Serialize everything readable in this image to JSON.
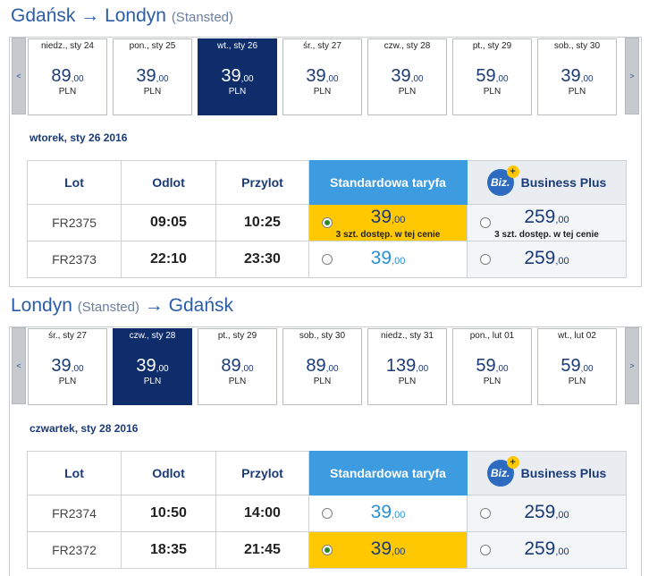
{
  "outbound": {
    "from": "Gdańsk",
    "to": "Londyn",
    "to_sub": "(Stansted)",
    "prev": "<",
    "next": ">",
    "days": [
      {
        "label": "niedz., sty 24",
        "price": "89",
        "cents": ",00",
        "currency": "PLN"
      },
      {
        "label": "pon., sty 25",
        "price": "39",
        "cents": ",00",
        "currency": "PLN"
      },
      {
        "label": "wt., sty 26",
        "price": "39",
        "cents": ",00",
        "currency": "PLN"
      },
      {
        "label": "śr., sty 27",
        "price": "39",
        "cents": ",00",
        "currency": "PLN"
      },
      {
        "label": "czw., sty 28",
        "price": "39",
        "cents": ",00",
        "currency": "PLN"
      },
      {
        "label": "pt., sty 29",
        "price": "59",
        "cents": ",00",
        "currency": "PLN"
      },
      {
        "label": "sob., sty 30",
        "price": "39",
        "cents": ",00",
        "currency": "PLN"
      }
    ],
    "date": "wtorek, sty 26 2016",
    "flights": [
      {
        "flight": "FR2375",
        "dep": "09:05",
        "arr": "10:25",
        "std_price": "39",
        "std_cents": ",00",
        "std_note": "3 szt. dostęp. w tej cenie",
        "biz_price": "259",
        "biz_cents": ",00",
        "biz_note": "3 szt. dostęp. w tej cenie"
      },
      {
        "flight": "FR2373",
        "dep": "22:10",
        "arr": "23:30",
        "std_price": "39",
        "std_cents": ",00",
        "biz_price": "259",
        "biz_cents": ",00"
      }
    ]
  },
  "inbound": {
    "from": "Londyn",
    "from_sub": "(Stansted)",
    "to": "Gdańsk",
    "prev": "<",
    "next": ">",
    "days": [
      {
        "label": "śr., sty 27",
        "price": "39",
        "cents": ",00",
        "currency": "PLN"
      },
      {
        "label": "czw., sty 28",
        "price": "39",
        "cents": ",00",
        "currency": "PLN"
      },
      {
        "label": "pt., sty 29",
        "price": "89",
        "cents": ",00",
        "currency": "PLN"
      },
      {
        "label": "sob., sty 30",
        "price": "89",
        "cents": ",00",
        "currency": "PLN"
      },
      {
        "label": "niedz., sty 31",
        "price": "139",
        "cents": ",00",
        "currency": "PLN"
      },
      {
        "label": "pon., lut 01",
        "price": "59",
        "cents": ",00",
        "currency": "PLN"
      },
      {
        "label": "wt., lut 02",
        "price": "59",
        "cents": ",00",
        "currency": "PLN"
      }
    ],
    "date": "czwartek, sty 28 2016",
    "flights": [
      {
        "flight": "FR2374",
        "dep": "10:50",
        "arr": "14:00",
        "std_price": "39",
        "std_cents": ",00",
        "biz_price": "259",
        "biz_cents": ",00"
      },
      {
        "flight": "FR2372",
        "dep": "18:35",
        "arr": "21:45",
        "std_price": "39",
        "std_cents": ",00",
        "biz_price": "259",
        "biz_cents": ",00"
      }
    ]
  },
  "headers": {
    "flight": "Lot",
    "departure": "Odlot",
    "arrival": "Przylot",
    "standard": "Standardowa taryfa",
    "business": "Business Plus",
    "biz_logo": "Biz.",
    "biz_plus": "+"
  },
  "arrow_glyph": "→",
  "colors": {
    "brand": "#0f2d6b",
    "standard_header": "#3d9be0",
    "selected_fare": "#ffc800",
    "fare_blue": "#2a90d8"
  }
}
